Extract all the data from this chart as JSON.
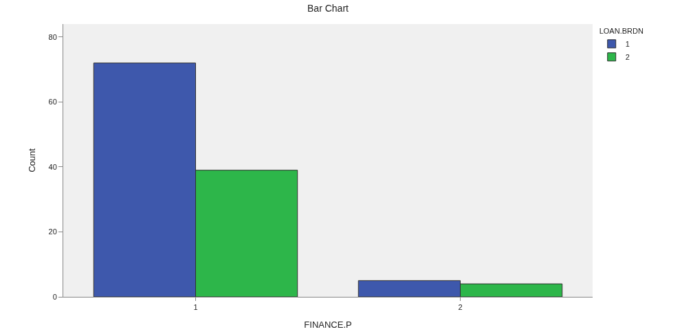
{
  "chart_data": {
    "type": "bar",
    "title": "Bar Chart",
    "xlabel": "FINANCE.P",
    "ylabel": "Count",
    "legend_title": "LOAN.BRDN",
    "categories": [
      "1",
      "2"
    ],
    "series": [
      {
        "name": "1",
        "color": "#3e58ac",
        "values": [
          72,
          5
        ]
      },
      {
        "name": "2",
        "color": "#2db64a",
        "values": [
          39,
          4
        ]
      }
    ],
    "ylim": [
      0,
      84
    ],
    "yticks": [
      0,
      20,
      40,
      60,
      80
    ],
    "grid": false,
    "legend": "top right"
  }
}
